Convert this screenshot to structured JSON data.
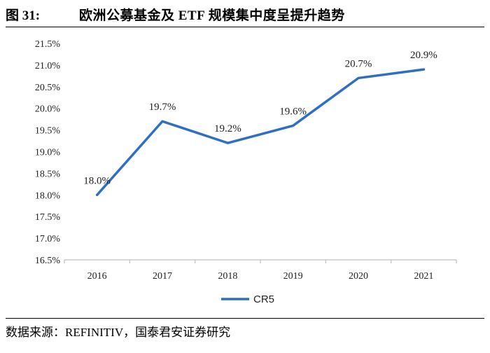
{
  "figure": {
    "number": "图 31:",
    "title": "欧洲公募基金及 ETF 规模集中度呈提升趋势",
    "source": "数据来源：REFINITIV，国泰君安证券研究"
  },
  "chart_data": {
    "type": "line",
    "categories": [
      "2016",
      "2017",
      "2018",
      "2019",
      "2020",
      "2021"
    ],
    "series": [
      {
        "name": "CR5",
        "values": [
          18.0,
          19.7,
          19.2,
          19.6,
          20.7,
          20.9
        ],
        "labels": [
          "18.0%",
          "19.7%",
          "19.2%",
          "19.6%",
          "20.7%",
          "20.9%"
        ]
      }
    ],
    "y_ticks": [
      "16.5%",
      "17.0%",
      "17.5%",
      "18.0%",
      "18.5%",
      "19.0%",
      "19.5%",
      "20.0%",
      "20.5%",
      "21.0%",
      "21.5%"
    ],
    "ylim": [
      16.5,
      21.5
    ],
    "legend_position": "bottom-center",
    "grid": false,
    "colors": {
      "line": "#2E6FC3",
      "axis": "#BFBFBF"
    }
  }
}
